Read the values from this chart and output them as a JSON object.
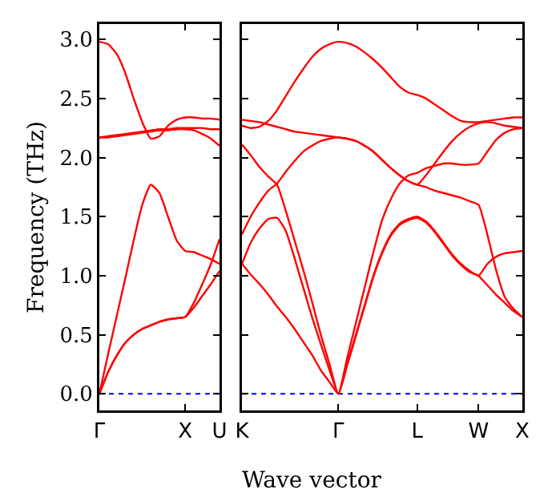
{
  "chart_data": [
    {
      "type": "line",
      "ylabel": "Frequency (THz)",
      "categories": [
        "Γ",
        null,
        null,
        null,
        null,
        null,
        null,
        null,
        null,
        null,
        "X",
        null,
        null,
        null,
        "U"
      ],
      "ylim": [
        -0.14,
        3.13
      ],
      "yticks": [
        {
          "value": 0,
          "label": "0.0"
        },
        {
          "value": 0.5,
          "label": "0.5"
        },
        {
          "value": 1,
          "label": "1.0"
        },
        {
          "value": 1.5,
          "label": "1.5"
        },
        {
          "value": 2,
          "label": "2.0"
        },
        {
          "value": 2.5,
          "label": "2.5"
        },
        {
          "value": 3,
          "label": "3.0"
        }
      ],
      "ref_lines": [
        {
          "axis": "y",
          "value": 0,
          "color": "#0000ff",
          "line_style": "dotted"
        }
      ],
      "series": [
        {
          "color": "#ff0000",
          "values": [
            2.98,
            2.96,
            2.88,
            2.72,
            2.5,
            2.3,
            2.16,
            2.18,
            2.27,
            2.32,
            2.34,
            2.34,
            2.33,
            2.33,
            2.32
          ]
        },
        {
          "color": "#ff0000",
          "values": [
            2.17,
            2.18,
            2.19,
            2.2,
            2.21,
            2.22,
            2.23,
            2.24,
            2.24,
            2.25,
            2.25,
            2.25,
            2.25,
            2.24,
            2.24
          ]
        },
        {
          "color": "#ff0000",
          "values": [
            2.17,
            2.17,
            2.18,
            2.19,
            2.2,
            2.21,
            2.22,
            2.23,
            2.23,
            2.24,
            2.24,
            2.23,
            2.2,
            2.16,
            2.1
          ]
        },
        {
          "color": "#ff0000",
          "values": [
            0,
            0.33,
            0.65,
            0.97,
            1.3,
            1.6,
            1.77,
            1.7,
            1.5,
            1.3,
            1.21,
            1.2,
            1.17,
            1.14,
            1.1
          ]
        },
        {
          "color": "#ff0000",
          "values": [
            0,
            0.18,
            0.32,
            0.43,
            0.5,
            0.55,
            0.58,
            0.61,
            0.63,
            0.64,
            0.65,
            0.77,
            0.93,
            1.1,
            1.31
          ]
        },
        {
          "color": "#ff0000",
          "values": [
            0,
            0.18,
            0.32,
            0.43,
            0.5,
            0.55,
            0.58,
            0.61,
            0.63,
            0.64,
            0.65,
            0.73,
            0.83,
            0.93,
            1.04
          ]
        }
      ]
    },
    {
      "type": "line",
      "xlabel": "Wave vector",
      "tick_labels": "x",
      "categories": [
        "K",
        null,
        null,
        null,
        null,
        null,
        null,
        null,
        null,
        null,
        null,
        "Γ",
        null,
        null,
        null,
        null,
        null,
        null,
        null,
        null,
        "L",
        null,
        null,
        null,
        null,
        null,
        null,
        "W",
        null,
        null,
        null,
        null,
        "X"
      ],
      "ylim": [
        -0.14,
        3.13
      ],
      "yticks": [
        {
          "value": 0,
          "label": null
        },
        {
          "value": 0.5,
          "label": null
        },
        {
          "value": 1,
          "label": null
        },
        {
          "value": 1.5,
          "label": null
        },
        {
          "value": 2,
          "label": null
        },
        {
          "value": 2.5,
          "label": null
        },
        {
          "value": 3,
          "label": null
        }
      ],
      "ref_lines": [
        {
          "axis": "y",
          "value": 0,
          "color": "#0000ff",
          "line_style": "dotted"
        }
      ],
      "series": [
        {
          "color": "#ff0000",
          "values": [
            2.27,
            2.25,
            2.26,
            2.31,
            2.4,
            2.52,
            2.64,
            2.75,
            2.85,
            2.92,
            2.96,
            2.98,
            2.97,
            2.94,
            2.89,
            2.83,
            2.76,
            2.68,
            2.6,
            2.55,
            2.53,
            2.5,
            2.45,
            2.4,
            2.35,
            2.31,
            2.3,
            2.3,
            2.31,
            2.32,
            2.33,
            2.34,
            2.34
          ]
        },
        {
          "color": "#ff0000",
          "values": [
            2.32,
            2.31,
            2.3,
            2.28,
            2.26,
            2.24,
            2.22,
            2.21,
            2.2,
            2.19,
            2.18,
            2.17,
            2.16,
            2.14,
            2.1,
            2.05,
            1.98,
            1.91,
            1.85,
            1.8,
            1.77,
            1.75,
            1.72,
            1.7,
            1.68,
            1.66,
            1.63,
            1.6,
            1.35,
            1.05,
            0.82,
            0.72,
            0.65
          ]
        },
        {
          "color": "#ff0000",
          "values": [
            1.35,
            1.5,
            1.62,
            1.72,
            1.78,
            1.88,
            1.97,
            2.05,
            2.1,
            2.14,
            2.16,
            2.17,
            2.16,
            2.14,
            2.1,
            2.05,
            1.98,
            1.91,
            1.85,
            1.8,
            1.77,
            1.85,
            1.95,
            2.05,
            2.14,
            2.21,
            2.26,
            2.29,
            2.3,
            2.29,
            2.27,
            2.26,
            2.25
          ]
        },
        {
          "color": "#ff0000",
          "values": [
            2.11,
            2.02,
            1.92,
            1.84,
            1.77,
            1.55,
            1.3,
            1.05,
            0.78,
            0.5,
            0.25,
            0,
            0.3,
            0.6,
            0.9,
            1.2,
            1.47,
            1.65,
            1.78,
            1.85,
            1.87,
            1.91,
            1.93,
            1.95,
            1.95,
            1.94,
            1.94,
            1.95,
            2.05,
            2.15,
            2.21,
            2.24,
            2.25
          ]
        },
        {
          "color": "#ff0000",
          "values": [
            1.1,
            1.28,
            1.4,
            1.48,
            1.49,
            1.38,
            1.15,
            0.9,
            0.65,
            0.42,
            0.2,
            0,
            0.25,
            0.5,
            0.75,
            1,
            1.2,
            1.35,
            1.44,
            1.48,
            1.5,
            1.46,
            1.38,
            1.28,
            1.18,
            1.1,
            1.04,
            1,
            1.1,
            1.16,
            1.19,
            1.2,
            1.21
          ]
        },
        {
          "color": "#ff0000",
          "values": [
            1.1,
            1.01,
            0.93,
            0.84,
            0.74,
            0.65,
            0.55,
            0.44,
            0.33,
            0.2,
            0.1,
            0,
            0.24,
            0.49,
            0.74,
            0.99,
            1.19,
            1.34,
            1.43,
            1.47,
            1.49,
            1.45,
            1.37,
            1.27,
            1.17,
            1.09,
            1.03,
            1,
            0.92,
            0.84,
            0.77,
            0.7,
            0.65
          ]
        }
      ]
    }
  ]
}
